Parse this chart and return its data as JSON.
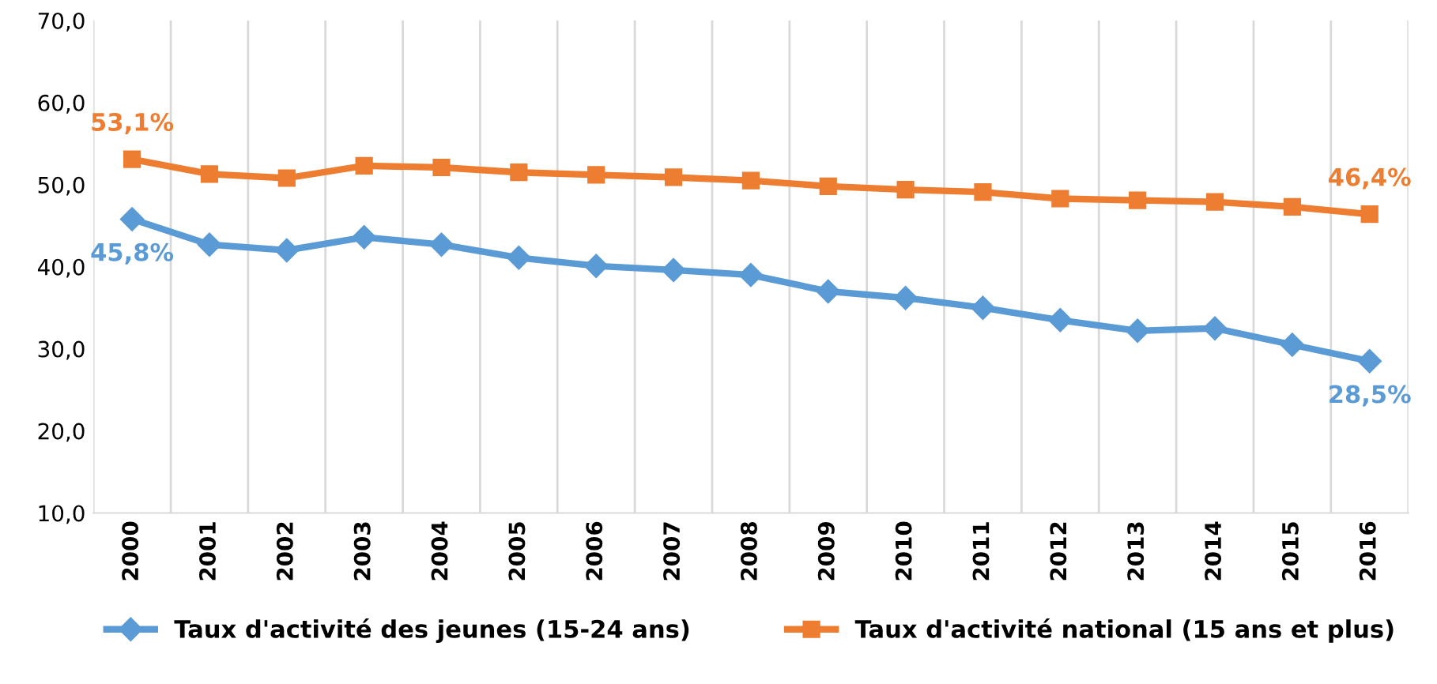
{
  "chart_data": {
    "type": "line",
    "categories": [
      "2000",
      "2001",
      "2002",
      "2003",
      "2004",
      "2005",
      "2006",
      "2007",
      "2008",
      "2009",
      "2010",
      "2011",
      "2012",
      "2013",
      "2014",
      "2015",
      "2016"
    ],
    "series": [
      {
        "name": "Taux d'activité des jeunes (15-24 ans)",
        "color": "#5b9bd5",
        "marker": "diamond",
        "values": [
          45.8,
          42.7,
          42.0,
          43.6,
          42.7,
          41.1,
          40.1,
          39.6,
          39.0,
          37.0,
          36.2,
          35.0,
          33.5,
          32.2,
          32.5,
          30.5,
          28.5
        ]
      },
      {
        "name": "Taux d'activité national (15 ans et plus)",
        "color": "#ed7d31",
        "marker": "square",
        "values": [
          53.1,
          51.3,
          50.8,
          52.3,
          52.1,
          51.5,
          51.2,
          50.9,
          50.5,
          49.8,
          49.4,
          49.1,
          48.3,
          48.1,
          47.9,
          47.3,
          46.4
        ]
      }
    ],
    "ylim": [
      10,
      70
    ],
    "yticks": [
      {
        "value": 10,
        "label": "10,0"
      },
      {
        "value": 20,
        "label": "20,0"
      },
      {
        "value": 30,
        "label": "30,0"
      },
      {
        "value": 40,
        "label": "40,0"
      },
      {
        "value": 50,
        "label": "50,0"
      },
      {
        "value": 60,
        "label": "60,0"
      },
      {
        "value": 70,
        "label": "70,0"
      }
    ],
    "grid": "x",
    "legend": "bottom",
    "line_style": "solid",
    "annotations": [
      {
        "text": "45,8%",
        "x": "2000",
        "y": 45.8
      },
      {
        "text": "28,5%",
        "x": "2016",
        "y": 28.5
      },
      {
        "text": "53,1%",
        "x": "2000",
        "y": 53.1
      },
      {
        "text": "46,4%",
        "x": "2016",
        "y": 46.4
      }
    ]
  }
}
